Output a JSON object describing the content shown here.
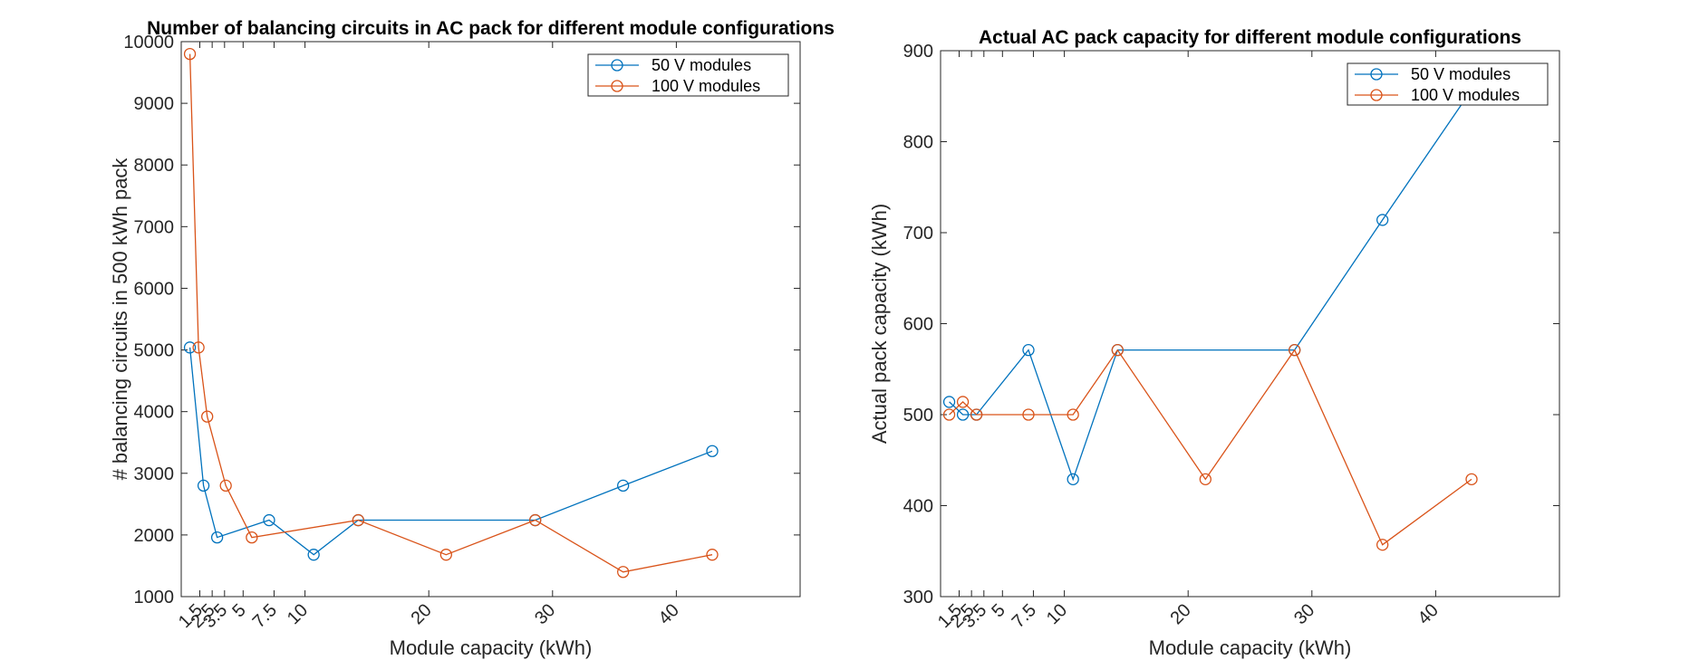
{
  "chart_data": [
    {
      "type": "line",
      "title": "Number of balancing circuits in AC pack for different module configurations",
      "xlabel": "Module capacity (kWh)",
      "ylabel": "# balancing circuits in 500 kWh pack",
      "xlim": [
        0,
        50
      ],
      "ylim": [
        1000,
        10000
      ],
      "xticks": [
        1.5,
        2.5,
        3.5,
        5,
        7.5,
        10,
        20,
        30,
        40
      ],
      "xticklabels": [
        "1.5",
        "2.5",
        "3.5",
        "5",
        "7.5",
        "10",
        "20",
        "30",
        "40"
      ],
      "yticks": [
        1000,
        2000,
        3000,
        4000,
        5000,
        6000,
        7000,
        8000,
        9000,
        10000
      ],
      "yticklabels": [
        "1000",
        "2000",
        "3000",
        "4000",
        "5000",
        "6000",
        "7000",
        "8000",
        "9000",
        "10000"
      ],
      "grid": false,
      "legend": {
        "location": "top-right",
        "entries": [
          "50 V modules",
          "100 V modules"
        ]
      },
      "series": [
        {
          "name": "50 V modules",
          "color": "#0072BD",
          "marker": "circle",
          "x": [
            0.7,
            1.8,
            2.9,
            7.1,
            10.7,
            14.3,
            28.6,
            35.7,
            42.9
          ],
          "y": [
            5040,
            2800,
            1960,
            2240,
            1680,
            2240,
            2240,
            2800,
            3360
          ]
        },
        {
          "name": "100 V modules",
          "color": "#D95319",
          "marker": "circle",
          "x": [
            0.7,
            1.4,
            2.1,
            3.6,
            5.7,
            14.3,
            21.4,
            28.6,
            35.7,
            42.9
          ],
          "y": [
            9800,
            5040,
            3920,
            2800,
            1960,
            2240,
            1680,
            2240,
            1400,
            1680
          ]
        }
      ]
    },
    {
      "type": "line",
      "title": "Actual AC pack capacity for different module configurations",
      "xlabel": "Module capacity (kWh)",
      "ylabel": "Actual pack capacity (kWh)",
      "xlim": [
        0,
        50
      ],
      "ylim": [
        300,
        900
      ],
      "xticks": [
        1.5,
        2.5,
        3.5,
        5,
        7.5,
        10,
        20,
        30,
        40
      ],
      "xticklabels": [
        "1.5",
        "2.5",
        "3.5",
        "5",
        "7.5",
        "10",
        "20",
        "30",
        "40"
      ],
      "yticks": [
        300,
        400,
        500,
        600,
        700,
        800,
        900
      ],
      "yticklabels": [
        "300",
        "400",
        "500",
        "600",
        "700",
        "800",
        "900"
      ],
      "grid": false,
      "legend": {
        "location": "top-right",
        "entries": [
          "50 V modules",
          "100 V modules"
        ]
      },
      "series": [
        {
          "name": "50 V modules",
          "color": "#0072BD",
          "marker": "circle",
          "x": [
            0.7,
            1.8,
            2.9,
            7.1,
            10.7,
            14.3,
            28.6,
            35.7,
            42.9
          ],
          "y": [
            514,
            500,
            500,
            571,
            429,
            571,
            571,
            714,
            857
          ]
        },
        {
          "name": "100 V modules",
          "color": "#D95319",
          "marker": "circle",
          "x": [
            0.7,
            1.8,
            2.9,
            7.1,
            10.7,
            14.3,
            21.4,
            28.6,
            35.7,
            42.9
          ],
          "y": [
            500,
            514,
            500,
            500,
            500,
            571,
            429,
            571,
            357,
            429
          ]
        }
      ]
    }
  ]
}
